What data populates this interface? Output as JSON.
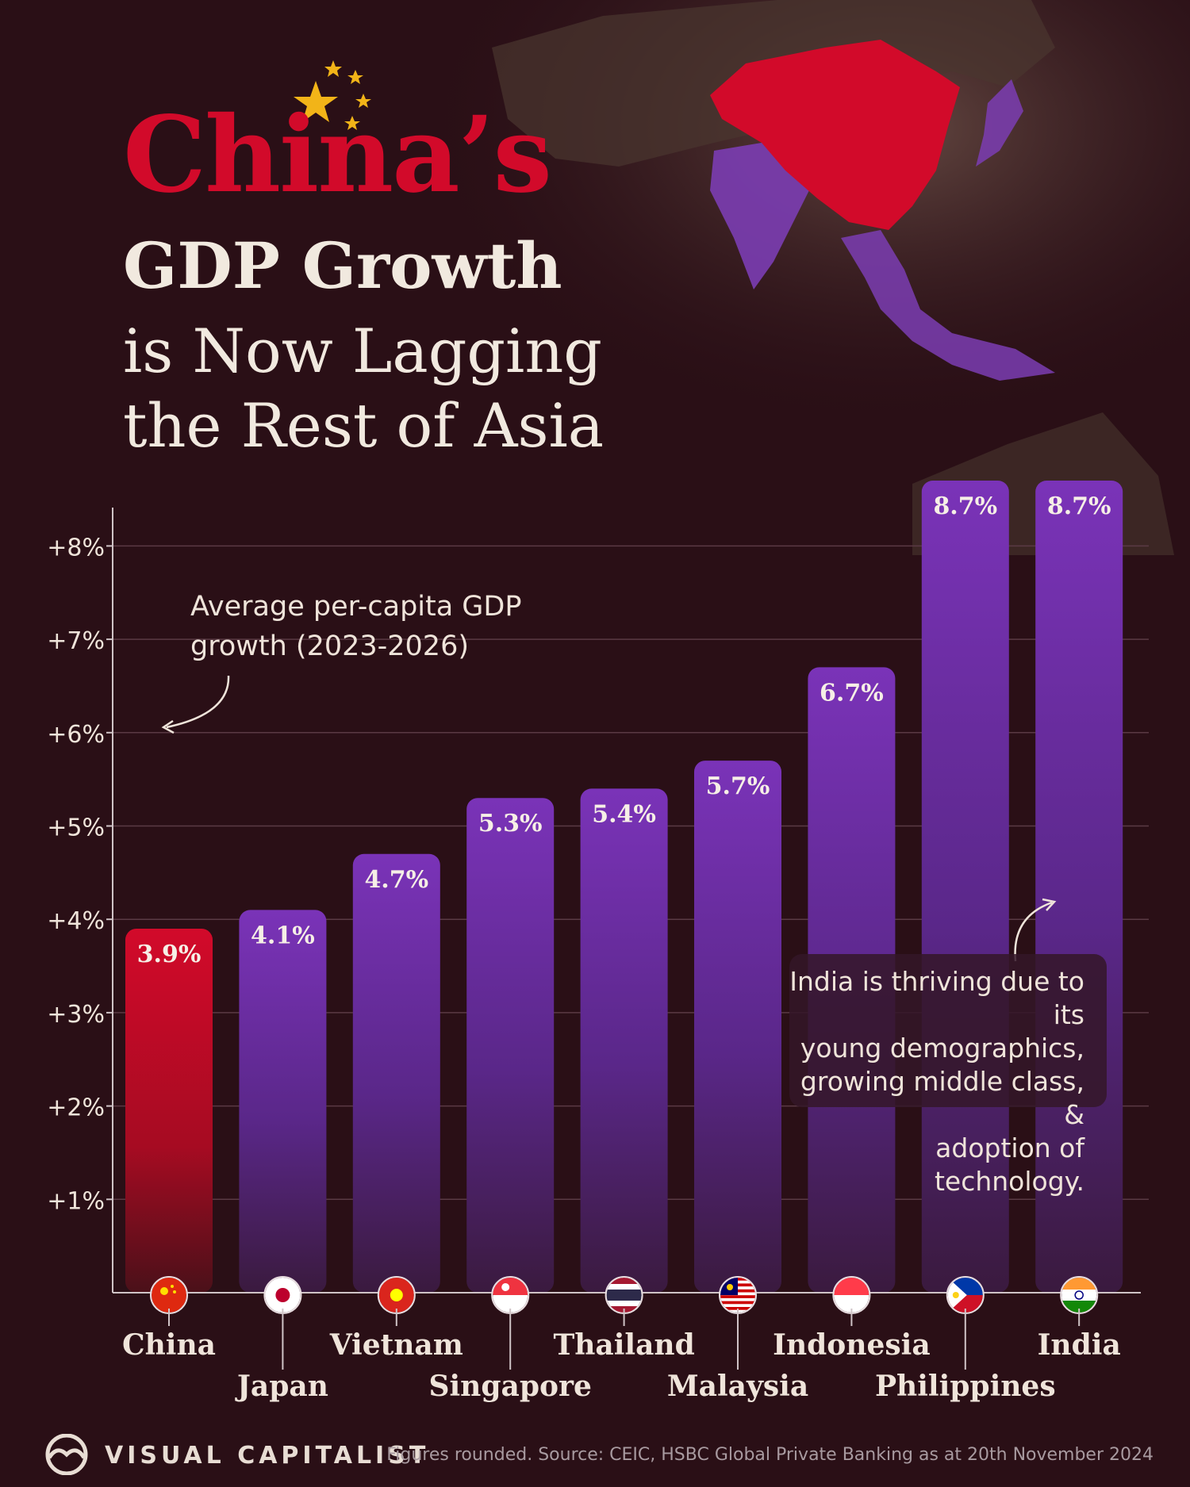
{
  "title": {
    "line1": "China’s",
    "line2": "GDP Growth",
    "line3": "is Now Lagging",
    "line4": "the Rest of Asia"
  },
  "annotations": {
    "axis_note": "Average per-capita GDP growth (2023-2026)",
    "india_note_lines": [
      "India is thriving due to its",
      "young demographics,",
      "growing middle class, &",
      "adoption of technology."
    ]
  },
  "footer": {
    "brand": "VISUAL CAPITALIST",
    "source": "Figures rounded. Source: CEIC, HSBC Global Private Banking as at 20th November 2024"
  },
  "colors": {
    "background": "#2a0f16",
    "china_red": "#d20a2a",
    "bar_purple": "#7a33b8",
    "text_light": "#f1e9df",
    "star_gold": "#f2b418"
  },
  "chart_data": {
    "type": "bar",
    "categories": [
      "China",
      "Japan",
      "Vietnam",
      "Singapore",
      "Thailand",
      "Malaysia",
      "Indonesia",
      "Philippines",
      "India"
    ],
    "values": [
      3.9,
      4.1,
      4.7,
      5.3,
      5.4,
      5.7,
      6.7,
      8.7,
      8.7
    ],
    "value_labels": [
      "3.9%",
      "4.1%",
      "4.7%",
      "5.3%",
      "5.4%",
      "5.7%",
      "6.7%",
      "8.7%",
      "8.7%"
    ],
    "highlight": "China",
    "ylim": [
      0,
      8.7
    ],
    "yticks": [
      1,
      2,
      3,
      4,
      5,
      6,
      7,
      8
    ],
    "ytick_labels": [
      "+1%",
      "+2%",
      "+3%",
      "+4%",
      "+5%",
      "+6%",
      "+7%",
      "+8%"
    ],
    "grid": true,
    "flag_icons": [
      "china-flag-icon",
      "japan-flag-icon",
      "vietnam-flag-icon",
      "singapore-flag-icon",
      "thailand-flag-icon",
      "malaysia-flag-icon",
      "indonesia-flag-icon",
      "philippines-flag-icon",
      "india-flag-icon"
    ]
  }
}
